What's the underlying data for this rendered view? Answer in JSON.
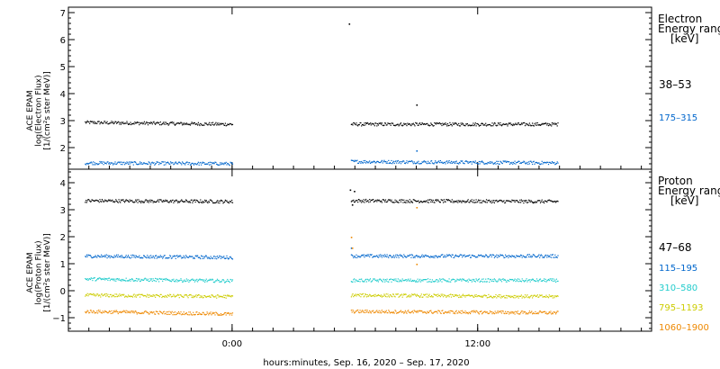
{
  "chart_data": [
    {
      "type": "scatter",
      "panel": "electron",
      "ylabel_lines": [
        "ACE EPAM",
        "log(Electron Flux)",
        "[1/(cm²s ster MeV)]"
      ],
      "ylim": [
        1.2,
        7.2
      ],
      "yticks": [
        2,
        3,
        4,
        5,
        6,
        7
      ],
      "legend_title_lines": [
        "Electron",
        "Energy range",
        "[keV]"
      ],
      "series": [
        {
          "name": "38–53",
          "color": "#000000",
          "segments": [
            {
              "x": [
                -7.2,
                0.0
              ],
              "y": [
                2.95,
                2.88
              ]
            },
            {
              "x": [
                5.8,
                15.9
              ],
              "y": [
                2.88,
                2.88
              ]
            }
          ],
          "outliers": [
            {
              "x": 5.7,
              "y": 6.6
            },
            {
              "x": 9.0,
              "y": 3.6
            }
          ]
        },
        {
          "name": "175–315",
          "color": "#0066cc",
          "segments": [
            {
              "x": [
                -7.2,
                0.0
              ],
              "y": [
                1.45,
                1.42
              ]
            },
            {
              "x": [
                5.8,
                15.9
              ],
              "y": [
                1.5,
                1.45
              ]
            }
          ],
          "outliers": [
            {
              "x": 9.0,
              "y": 1.9
            }
          ]
        }
      ]
    },
    {
      "type": "scatter",
      "panel": "proton",
      "ylabel_lines": [
        "ACE EPAM",
        "log(Proton Flux)",
        "[1/(cm²s ster MeV)]"
      ],
      "ylim": [
        -1.5,
        4.5
      ],
      "yticks": [
        -1,
        0,
        1,
        2,
        3,
        4
      ],
      "legend_title_lines": [
        "Proton",
        "Energy range",
        "[keV]"
      ],
      "series": [
        {
          "name": "47–68",
          "color": "#000000",
          "segments": [
            {
              "x": [
                -7.2,
                0.0
              ],
              "y": [
                3.35,
                3.32
              ]
            },
            {
              "x": [
                5.8,
                15.9
              ],
              "y": [
                3.35,
                3.32
              ]
            }
          ],
          "outliers": [
            {
              "x": 5.75,
              "y": 3.75
            },
            {
              "x": 5.95,
              "y": 3.7
            },
            {
              "x": 5.85,
              "y": 3.2
            }
          ]
        },
        {
          "name": "115–195",
          "color": "#0066cc",
          "segments": [
            {
              "x": [
                -7.2,
                0.0
              ],
              "y": [
                1.3,
                1.25
              ]
            },
            {
              "x": [
                5.8,
                15.9
              ],
              "y": [
                1.3,
                1.3
              ]
            }
          ],
          "outliers": [
            {
              "x": 5.8,
              "y": 1.6
            }
          ]
        },
        {
          "name": "310–580",
          "color": "#22cccc",
          "segments": [
            {
              "x": [
                -7.2,
                0.0
              ],
              "y": [
                0.45,
                0.38
              ]
            },
            {
              "x": [
                5.8,
                15.9
              ],
              "y": [
                0.4,
                0.4
              ]
            }
          ],
          "outliers": []
        },
        {
          "name": "795–1193",
          "color": "#cccc00",
          "segments": [
            {
              "x": [
                -7.2,
                0.0
              ],
              "y": [
                -0.15,
                -0.2
              ]
            },
            {
              "x": [
                5.8,
                15.9
              ],
              "y": [
                -0.15,
                -0.2
              ]
            }
          ],
          "outliers": []
        },
        {
          "name": "1060–1900",
          "color": "#ee8800",
          "segments": [
            {
              "x": [
                -7.2,
                0.0
              ],
              "y": [
                -0.75,
                -0.85
              ]
            },
            {
              "x": [
                5.8,
                15.9
              ],
              "y": [
                -0.75,
                -0.8
              ]
            }
          ],
          "outliers": [
            {
              "x": 5.8,
              "y": 2.0
            },
            {
              "x": 5.85,
              "y": 1.6
            },
            {
              "x": 9.0,
              "y": 3.1
            },
            {
              "x": 9.0,
              "y": 1.0
            }
          ]
        }
      ]
    }
  ],
  "x_axis": {
    "xlim": [
      -8,
      20.5
    ],
    "ticks": [
      {
        "value": 0,
        "label": "0:00"
      },
      {
        "value": 12,
        "label": "12:00"
      }
    ],
    "xlabel": "hours:minutes, Sep. 16, 2020 – Sep. 17, 2020"
  }
}
